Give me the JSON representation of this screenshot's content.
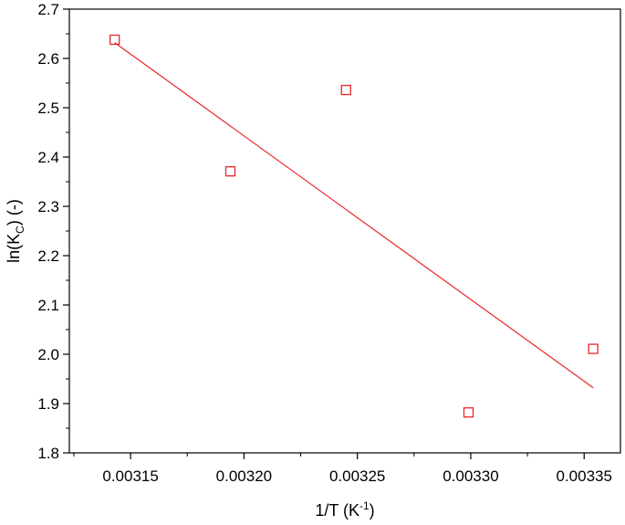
{
  "chart_data": {
    "type": "scatter",
    "xlabel": {
      "main": "1/T (K",
      "sup": "-1",
      "end": ")"
    },
    "ylabel": {
      "main": "ln(K",
      "sub": "C",
      "end": ") (-)"
    },
    "xlim": [
      0.003123,
      0.003366
    ],
    "ylim": [
      1.8,
      2.7
    ],
    "xticks": [
      0.00315,
      0.0032,
      0.00325,
      0.0033,
      0.00335
    ],
    "xtick_labels": [
      "0.00315",
      "0.00320",
      "0.00325",
      "0.00330",
      "0.00335"
    ],
    "yticks": [
      1.8,
      1.9,
      2.0,
      2.1,
      2.2,
      2.3,
      2.4,
      2.5,
      2.6,
      2.7
    ],
    "ytick_labels": [
      "1.8",
      "1.9",
      "2.0",
      "2.1",
      "2.2",
      "2.3",
      "2.4",
      "2.5",
      "2.6",
      "2.7"
    ],
    "series": [
      {
        "marker": "square",
        "color": "#e8262a",
        "points": [
          {
            "x": 0.003143,
            "y": 2.638
          },
          {
            "x": 0.003194,
            "y": 2.371
          },
          {
            "x": 0.003245,
            "y": 2.536
          },
          {
            "x": 0.003299,
            "y": 1.882
          },
          {
            "x": 0.003354,
            "y": 2.011
          }
        ]
      }
    ],
    "fit_line": {
      "color": "#e8262a",
      "x": [
        0.003143,
        0.003354
      ],
      "y": [
        2.632,
        1.932
      ]
    },
    "grid": false,
    "legend": "none"
  }
}
